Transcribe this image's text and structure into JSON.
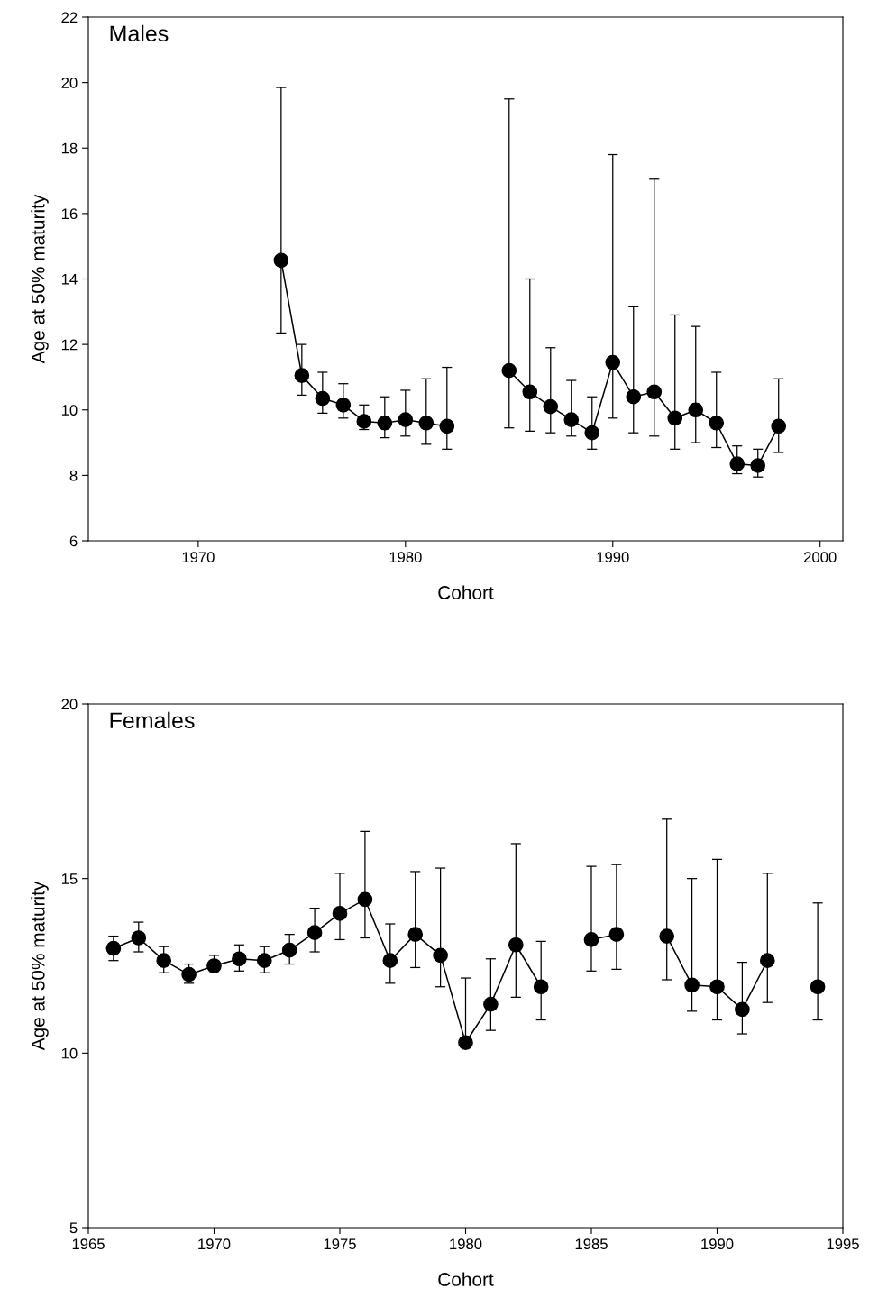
{
  "chart_data": [
    {
      "type": "line",
      "xlabel": "Cohort",
      "ylabel": "Age at 50% maturity",
      "annotations": [
        "Males"
      ],
      "marker": "circle",
      "line_style": "solid",
      "grid": false,
      "legend": false,
      "x": [
        1974,
        1975,
        1976,
        1977,
        1978,
        1979,
        1980,
        1981,
        1982,
        1983,
        1984,
        1985,
        1986,
        1987,
        1988,
        1989,
        1990,
        1991,
        1992,
        1993,
        1994,
        1995,
        1996,
        1997,
        1998
      ],
      "series": [
        {
          "color": "#000000",
          "values": [
            14.57,
            11.05,
            10.35,
            10.15,
            9.65,
            9.6,
            9.7,
            9.6,
            9.5,
            null,
            null,
            11.2,
            10.55,
            10.1,
            9.7,
            9.3,
            11.45,
            10.4,
            10.55,
            9.75,
            10.0,
            9.6,
            8.35,
            8.3,
            9.5
          ],
          "errors": [
            [
              12.35,
              19.85
            ],
            [
              10.45,
              12.0
            ],
            [
              9.9,
              11.15
            ],
            [
              9.75,
              10.8
            ],
            [
              9.4,
              10.15
            ],
            [
              9.15,
              10.4
            ],
            [
              9.2,
              10.6
            ],
            [
              8.95,
              10.95
            ],
            [
              8.8,
              11.3
            ],
            null,
            null,
            [
              9.45,
              19.5
            ],
            [
              9.35,
              14.0
            ],
            [
              9.3,
              11.9
            ],
            [
              9.2,
              10.9
            ],
            [
              8.8,
              10.4
            ],
            [
              9.75,
              17.8
            ],
            [
              9.3,
              13.15
            ],
            [
              9.2,
              17.05
            ],
            [
              8.8,
              12.9
            ],
            [
              9.0,
              12.55
            ],
            [
              8.85,
              11.15
            ],
            [
              8.05,
              8.9
            ],
            [
              7.95,
              8.8
            ],
            [
              8.7,
              10.95
            ]
          ]
        }
      ],
      "xlim": [
        1964.7,
        2001.1
      ],
      "xticks": [
        1970,
        1980,
        1990,
        2000
      ],
      "ylim": [
        6,
        22
      ],
      "yticks": [
        6,
        8,
        10,
        12,
        14,
        16,
        18,
        20,
        22
      ]
    },
    {
      "type": "line",
      "xlabel": "Cohort",
      "ylabel": "Age at 50% maturity",
      "annotations": [
        "Females"
      ],
      "marker": "circle",
      "line_style": "solid",
      "grid": false,
      "legend": false,
      "x": [
        1966,
        1967,
        1968,
        1969,
        1970,
        1971,
        1972,
        1973,
        1974,
        1975,
        1976,
        1977,
        1978,
        1979,
        1980,
        1981,
        1982,
        1983,
        1984,
        1985,
        1986,
        1987,
        1988,
        1989,
        1990,
        1991,
        1992,
        1993,
        1994
      ],
      "series": [
        {
          "color": "#000000",
          "values": [
            13.0,
            13.3,
            12.65,
            12.25,
            12.5,
            12.7,
            12.65,
            12.95,
            13.45,
            14.0,
            14.4,
            12.65,
            13.4,
            12.8,
            10.3,
            11.4,
            13.1,
            11.9,
            null,
            13.25,
            13.4,
            null,
            13.35,
            11.95,
            11.9,
            11.25,
            12.65,
            null,
            11.9
          ],
          "errors": [
            [
              12.65,
              13.35
            ],
            [
              12.9,
              13.75
            ],
            [
              12.3,
              13.05
            ],
            [
              12.0,
              12.55
            ],
            [
              12.3,
              12.8
            ],
            [
              12.35,
              13.1
            ],
            [
              12.3,
              13.05
            ],
            [
              12.55,
              13.4
            ],
            [
              12.9,
              14.15
            ],
            [
              13.25,
              15.15
            ],
            [
              13.3,
              16.35
            ],
            [
              12.0,
              13.7
            ],
            [
              12.45,
              15.2
            ],
            [
              11.9,
              15.3
            ],
            [
              10.15,
              12.15
            ],
            [
              10.65,
              12.7
            ],
            [
              11.6,
              16.0
            ],
            [
              10.95,
              13.2
            ],
            null,
            [
              12.35,
              15.35
            ],
            [
              12.4,
              15.4
            ],
            null,
            [
              12.1,
              16.7
            ],
            [
              11.2,
              15.0
            ],
            [
              10.95,
              15.55
            ],
            [
              10.55,
              12.6
            ],
            [
              11.45,
              15.15
            ],
            null,
            [
              10.95,
              14.3
            ]
          ]
        }
      ],
      "xlim": [
        1965,
        1995
      ],
      "xticks": [
        1965,
        1970,
        1975,
        1980,
        1985,
        1990,
        1995
      ],
      "ylim": [
        5,
        20
      ],
      "yticks": [
        5,
        10,
        15,
        20
      ]
    }
  ]
}
